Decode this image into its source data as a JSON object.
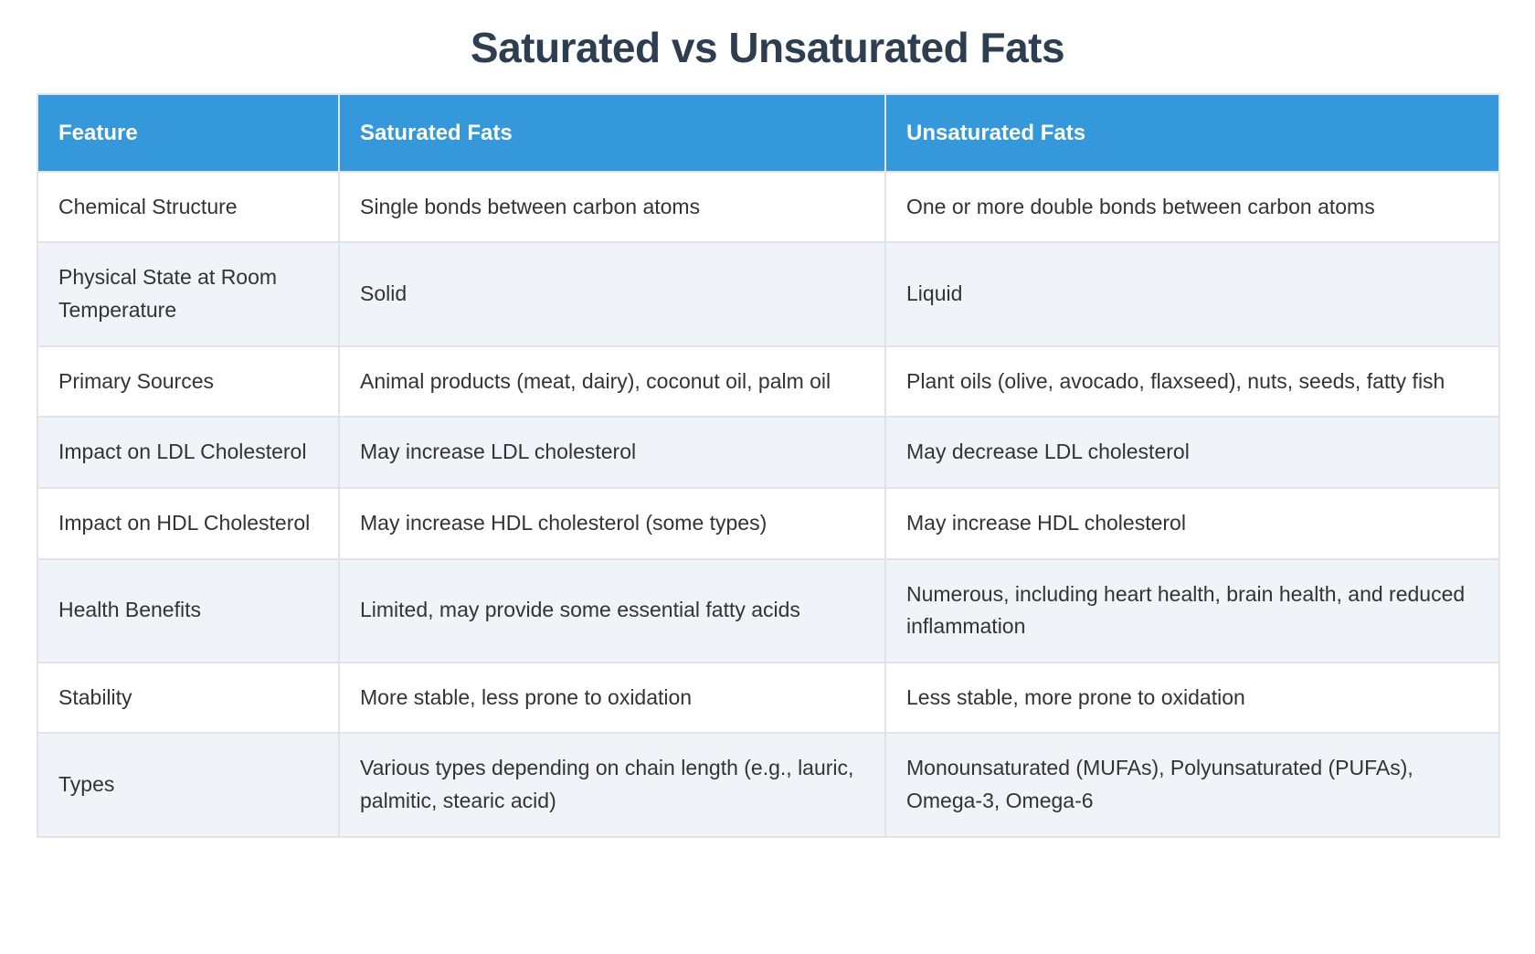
{
  "page": {
    "title": "Saturated vs Unsaturated Fats"
  },
  "colors": {
    "header_bg": "#3498db",
    "header_text": "#ffffff",
    "title_text": "#2c3e50",
    "body_text": "#333333",
    "row_alt_bg": "#f0f4f8",
    "border": "#e0e4e8"
  },
  "table": {
    "headers": [
      "Feature",
      "Saturated Fats",
      "Unsaturated Fats"
    ],
    "rows": [
      {
        "feature": "Chemical Structure",
        "saturated": "Single bonds between carbon atoms",
        "unsaturated": "One or more double bonds between carbon atoms"
      },
      {
        "feature": "Physical State at Room Temperature",
        "saturated": "Solid",
        "unsaturated": "Liquid"
      },
      {
        "feature": "Primary Sources",
        "saturated": "Animal products (meat, dairy), coconut oil, palm oil",
        "unsaturated": "Plant oils (olive, avocado, flaxseed), nuts, seeds, fatty fish"
      },
      {
        "feature": "Impact on LDL Cholesterol",
        "saturated": "May increase LDL cholesterol",
        "unsaturated": "May decrease LDL cholesterol"
      },
      {
        "feature": "Impact on HDL Cholesterol",
        "saturated": "May increase HDL cholesterol (some types)",
        "unsaturated": "May increase HDL cholesterol"
      },
      {
        "feature": "Health Benefits",
        "saturated": "Limited, may provide some essential fatty acids",
        "unsaturated": "Numerous, including heart health, brain health, and reduced inflammation"
      },
      {
        "feature": "Stability",
        "saturated": "More stable, less prone to oxidation",
        "unsaturated": "Less stable, more prone to oxidation"
      },
      {
        "feature": "Types",
        "saturated": "Various types depending on chain length (e.g., lauric, palmitic, stearic acid)",
        "unsaturated": "Monounsaturated (MUFAs), Polyunsaturated (PUFAs), Omega-3, Omega-6"
      }
    ]
  }
}
